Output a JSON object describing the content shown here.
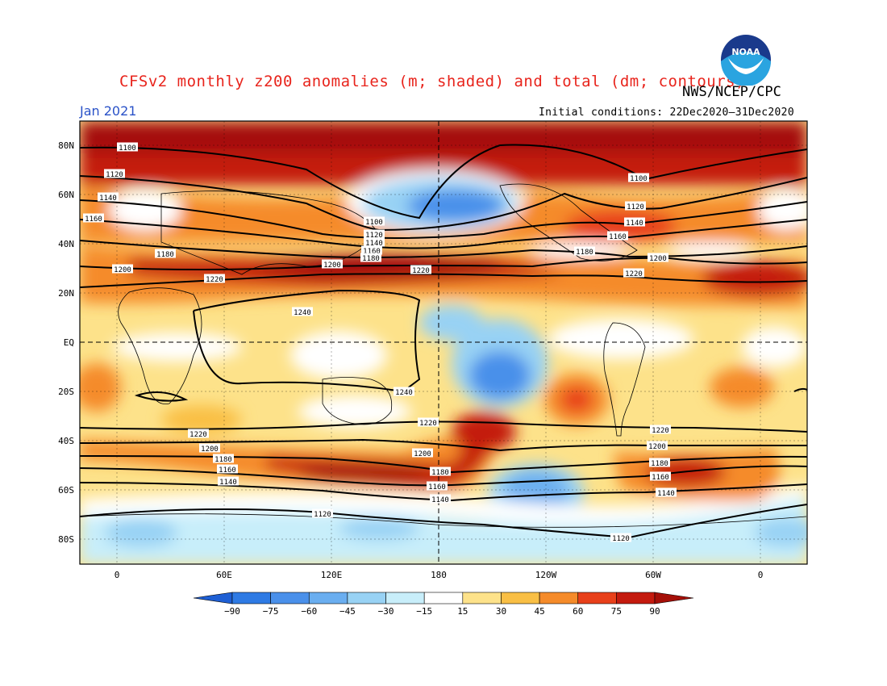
{
  "title": "CFSv2 monthly z200 anomalies (m; shaded) and total (dm; contours)",
  "agency": "NWS/NCEP/CPC",
  "period": "Jan 2021",
  "initial_conditions": "Initial conditions: 22Dec2020–31Dec2020",
  "logo_text": "NOAA",
  "map": {
    "lat_labels": [
      "80N",
      "60N",
      "40N",
      "20N",
      "EQ",
      "20S",
      "40S",
      "60S",
      "80S"
    ],
    "lon_labels": [
      "0",
      "60E",
      "120E",
      "180",
      "120W",
      "60W",
      "0"
    ]
  },
  "colorbar": {
    "ticks": [
      "−90",
      "−75",
      "−60",
      "−45",
      "−30",
      "−15",
      "15",
      "30",
      "45",
      "60",
      "75",
      "90"
    ],
    "colors": [
      "#1e5fd4",
      "#2e7ae4",
      "#4a90ea",
      "#6aaef0",
      "#98d2f4",
      "#c8eefa",
      "#ffffff",
      "#fde28a",
      "#f9bf45",
      "#f58b2a",
      "#e8401a",
      "#c41a0e",
      "#a50f08"
    ]
  },
  "contour_labels": [
    {
      "text": "1100"
    },
    {
      "text": "1120"
    },
    {
      "text": "1140"
    },
    {
      "text": "1160"
    },
    {
      "text": "1180"
    },
    {
      "text": "1200"
    },
    {
      "text": "1220"
    },
    {
      "text": "1100"
    },
    {
      "text": "1120"
    },
    {
      "text": "1140"
    },
    {
      "text": "1160"
    },
    {
      "text": "1180"
    },
    {
      "text": "1200"
    },
    {
      "text": "1220"
    },
    {
      "text": "1240"
    },
    {
      "text": "1100"
    },
    {
      "text": "1120"
    },
    {
      "text": "1140"
    },
    {
      "text": "1160"
    },
    {
      "text": "1180"
    },
    {
      "text": "1200"
    },
    {
      "text": "1220"
    },
    {
      "text": "1240"
    },
    {
      "text": "1220"
    },
    {
      "text": "1200"
    },
    {
      "text": "1180"
    },
    {
      "text": "1160"
    },
    {
      "text": "1140"
    },
    {
      "text": "1120"
    },
    {
      "text": "1220"
    },
    {
      "text": "1200"
    },
    {
      "text": "1180"
    },
    {
      "text": "1160"
    },
    {
      "text": "1140"
    },
    {
      "text": "1120"
    },
    {
      "text": "1220"
    },
    {
      "text": "1200"
    },
    {
      "text": "1180"
    },
    {
      "text": "1160"
    },
    {
      "text": "1140"
    }
  ]
}
